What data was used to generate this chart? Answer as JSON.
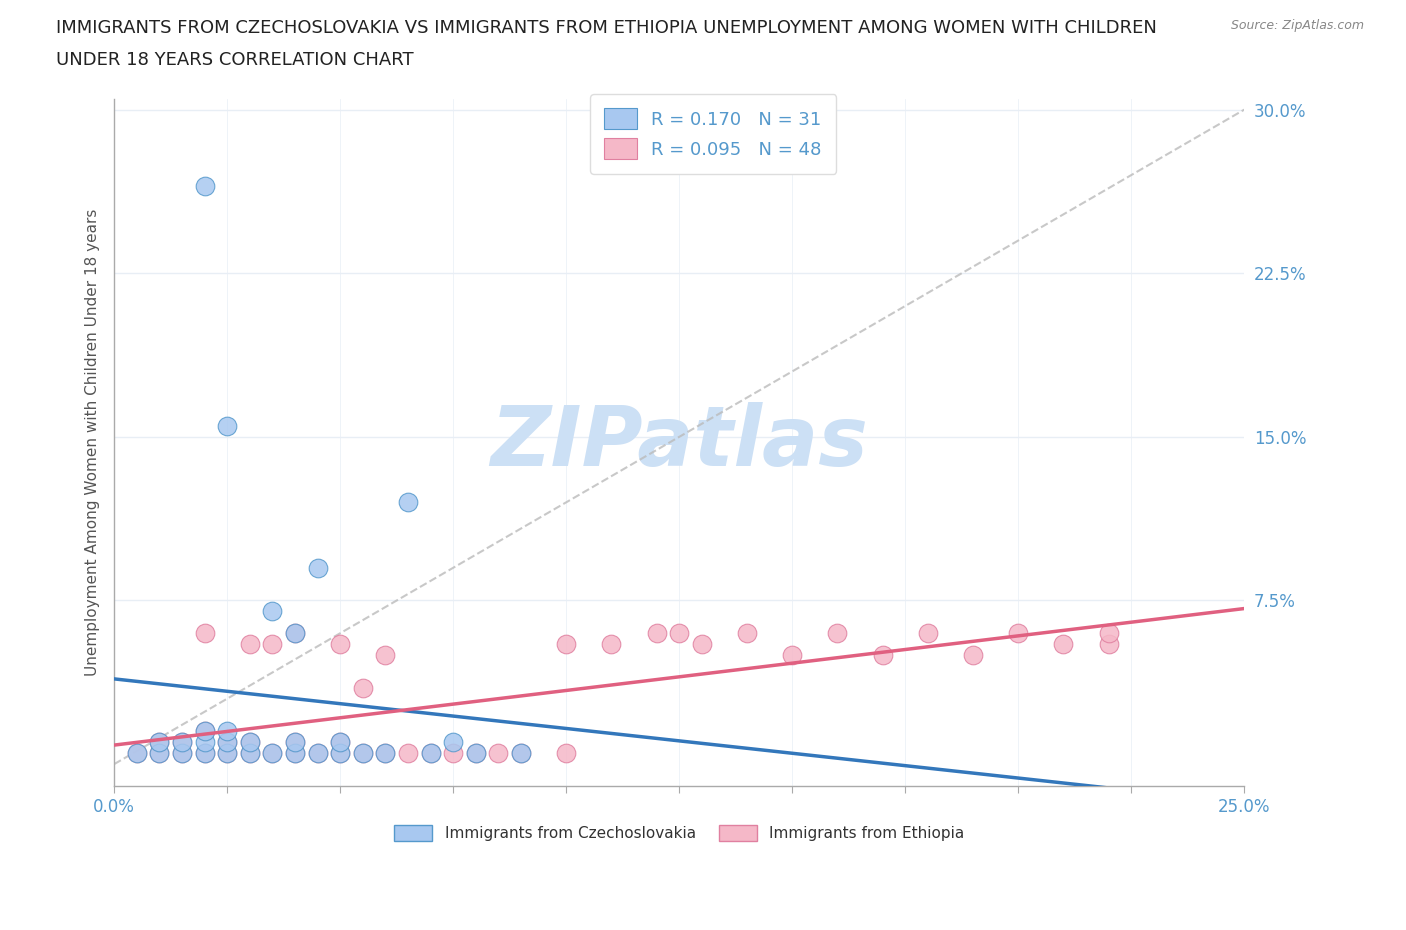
{
  "title_line1": "IMMIGRANTS FROM CZECHOSLOVAKIA VS IMMIGRANTS FROM ETHIOPIA UNEMPLOYMENT AMONG WOMEN WITH CHILDREN",
  "title_line2": "UNDER 18 YEARS CORRELATION CHART",
  "source_text": "Source: ZipAtlas.com",
  "ylabel": "Unemployment Among Women with Children Under 18 years",
  "xlim": [
    0.0,
    0.25
  ],
  "ylim": [
    -0.01,
    0.305
  ],
  "ytick_positions": [
    0.0,
    0.075,
    0.15,
    0.225,
    0.3
  ],
  "ytick_labels": [
    "",
    "7.5%",
    "15.0%",
    "22.5%",
    "30.0%"
  ],
  "xtick_positions": [
    0.0,
    0.025,
    0.05,
    0.075,
    0.1,
    0.125,
    0.15,
    0.175,
    0.2,
    0.225,
    0.25
  ],
  "xtick_labels": [
    "0.0%",
    "",
    "",
    "",
    "",
    "",
    "",
    "",
    "",
    "",
    "25.0%"
  ],
  "czech_R": 0.17,
  "czech_N": 31,
  "ethiopia_R": 0.095,
  "ethiopia_N": 48,
  "czech_color": "#a8c8f0",
  "czech_edge_color": "#5599cc",
  "czech_line_color": "#3377bb",
  "ethiopia_color": "#f5b8c8",
  "ethiopia_edge_color": "#e080a0",
  "ethiopia_line_color": "#e06080",
  "watermark": "ZIPatlas",
  "watermark_color": "#cce0f5",
  "background_color": "#ffffff",
  "grid_color": "#e8eef5",
  "axis_label_color": "#5599cc",
  "title_color": "#222222",
  "czech_x": [
    0.005,
    0.01,
    0.01,
    0.015,
    0.015,
    0.02,
    0.02,
    0.02,
    0.025,
    0.025,
    0.025,
    0.03,
    0.03,
    0.035,
    0.035,
    0.04,
    0.04,
    0.04,
    0.045,
    0.045,
    0.05,
    0.05,
    0.055,
    0.06,
    0.065,
    0.07,
    0.075,
    0.08,
    0.09,
    0.02,
    0.025
  ],
  "czech_y": [
    0.005,
    0.005,
    0.01,
    0.005,
    0.01,
    0.005,
    0.01,
    0.015,
    0.005,
    0.01,
    0.015,
    0.005,
    0.01,
    0.005,
    0.07,
    0.005,
    0.01,
    0.06,
    0.005,
    0.09,
    0.005,
    0.01,
    0.005,
    0.005,
    0.12,
    0.005,
    0.01,
    0.005,
    0.005,
    0.265,
    0.155
  ],
  "ethiopia_x": [
    0.005,
    0.01,
    0.01,
    0.015,
    0.015,
    0.02,
    0.02,
    0.025,
    0.025,
    0.03,
    0.03,
    0.035,
    0.035,
    0.04,
    0.04,
    0.045,
    0.05,
    0.05,
    0.055,
    0.055,
    0.06,
    0.06,
    0.065,
    0.07,
    0.075,
    0.08,
    0.085,
    0.09,
    0.1,
    0.1,
    0.11,
    0.12,
    0.125,
    0.13,
    0.14,
    0.15,
    0.16,
    0.17,
    0.18,
    0.19,
    0.2,
    0.21,
    0.22,
    0.22,
    0.02,
    0.03,
    0.04,
    0.05
  ],
  "ethiopia_y": [
    0.005,
    0.005,
    0.01,
    0.005,
    0.01,
    0.005,
    0.015,
    0.005,
    0.01,
    0.005,
    0.01,
    0.005,
    0.055,
    0.005,
    0.01,
    0.005,
    0.005,
    0.01,
    0.005,
    0.035,
    0.005,
    0.05,
    0.005,
    0.005,
    0.005,
    0.005,
    0.005,
    0.005,
    0.005,
    0.055,
    0.055,
    0.06,
    0.06,
    0.055,
    0.06,
    0.05,
    0.06,
    0.05,
    0.06,
    0.05,
    0.06,
    0.055,
    0.055,
    0.06,
    0.06,
    0.055,
    0.06,
    0.055
  ]
}
